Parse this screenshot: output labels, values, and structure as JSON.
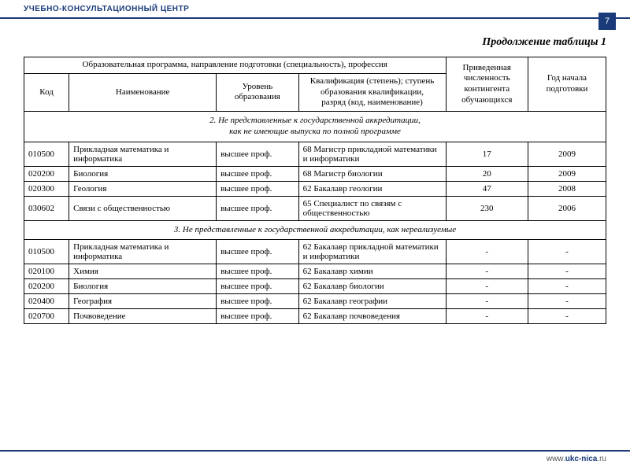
{
  "header": {
    "org": "УЧЕБНО-КОНСУЛЬТАЦИОННЫЙ ЦЕНТР",
    "page": "7"
  },
  "caption": "Продолжение таблицы 1",
  "footer": {
    "prefix": "www.",
    "domain": "ukc-nica",
    "suffix": ".ru"
  },
  "thead": {
    "group": "Образовательная программа, направление подготовки (специальность), профессия",
    "num": "Приведенная численность контингента обучающихся",
    "year": "Год начала подготовки",
    "code": "Код",
    "name": "Наименование",
    "level": "Уровень образования",
    "qual": "Квалификация (степень); ступень образования квалификации,\nразряд (код, наименование)"
  },
  "sections": [
    {
      "title": "2. Не представленные к государственной аккредитации,\nкак не имеющие выпуска по полной программе",
      "rows": [
        {
          "code": "010500",
          "name": "Прикладная математика и информатика",
          "level": "высшее проф.",
          "qual": "68 Магистр прикладной математики и информатики",
          "num": "17",
          "year": "2009"
        },
        {
          "code": "020200",
          "name": "Биология",
          "level": "высшее проф.",
          "qual": "68 Магистр биологии",
          "num": "20",
          "year": "2009"
        },
        {
          "code": "020300",
          "name": "Геология",
          "level": "высшее проф.",
          "qual": "62 Бакалавр геологии",
          "num": "47",
          "year": "2008"
        },
        {
          "code": "030602",
          "name": "Связи с общественностью",
          "level": "высшее проф.",
          "qual": "65 Специалист по связям с общественностью",
          "num": "230",
          "year": "2006"
        }
      ]
    },
    {
      "title": "3. Не представленные к государственной аккредитации, как нереализуемые",
      "rows": [
        {
          "code": "010500",
          "name": "Прикладная математика и информатика",
          "level": "высшее проф.",
          "qual": "62 Бакалавр прикладной математики и информатики",
          "num": "-",
          "year": "-"
        },
        {
          "code": "020100",
          "name": "Химия",
          "level": "высшее проф.",
          "qual": "62 Бакалавр химии",
          "num": "-",
          "year": "-"
        },
        {
          "code": "020200",
          "name": "Биология",
          "level": "высшее проф.",
          "qual": "62 Бакалавр биологии",
          "num": "-",
          "year": "-"
        },
        {
          "code": "020400",
          "name": "География",
          "level": "высшее проф.",
          "qual": "62 Бакалавр географии",
          "num": "-",
          "year": "-"
        },
        {
          "code": "020700",
          "name": "Почвоведение",
          "level": "высшее проф.",
          "qual": "62 Бакалавр почвоведения",
          "num": "-",
          "year": "-"
        }
      ]
    }
  ]
}
